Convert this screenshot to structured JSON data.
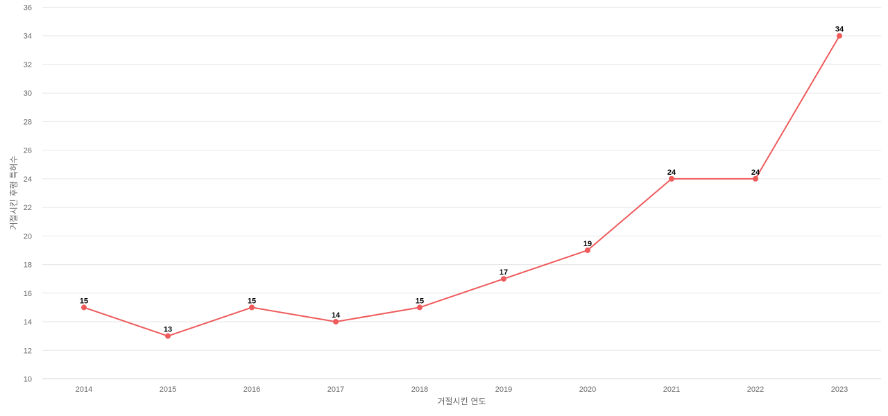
{
  "chart_data": {
    "type": "line",
    "title": "",
    "xlabel": "거절시킨 연도",
    "ylabel": "거절시킨 후행 특허수",
    "x": [
      "2014",
      "2015",
      "2016",
      "2017",
      "2018",
      "2019",
      "2020",
      "2021",
      "2022",
      "2023"
    ],
    "series": [
      {
        "values": [
          15,
          13,
          15,
          14,
          15,
          17,
          19,
          24,
          24,
          34
        ],
        "color": "#ef5a5a"
      }
    ],
    "ylim": [
      10,
      36
    ],
    "yticks": [
      10,
      12,
      14,
      16,
      18,
      20,
      22,
      24,
      26,
      28,
      30,
      32,
      34,
      36
    ],
    "grid": true,
    "legend": "none",
    "data_labels": true
  }
}
